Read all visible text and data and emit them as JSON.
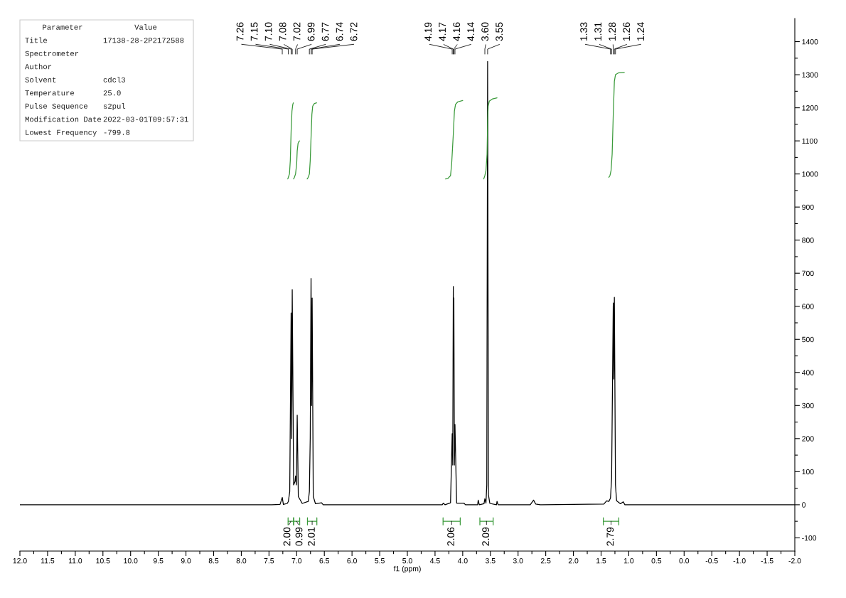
{
  "chart_data": {
    "type": "line",
    "xlabel": "f1 (ppm)",
    "xlim": [
      12.0,
      -2.0
    ],
    "ylim": [
      -140,
      1470
    ],
    "xticks": [
      {
        "value": 12.0,
        "label": "12.0"
      },
      {
        "value": 11.5,
        "label": "11.5"
      },
      {
        "value": 11.0,
        "label": "11.0"
      },
      {
        "value": 10.5,
        "label": "10.5"
      },
      {
        "value": 10.0,
        "label": "10.0"
      },
      {
        "value": 9.5,
        "label": "9.5"
      },
      {
        "value": 9.0,
        "label": "9.0"
      },
      {
        "value": 8.5,
        "label": "8.5"
      },
      {
        "value": 8.0,
        "label": "8.0"
      },
      {
        "value": 7.5,
        "label": "7.5"
      },
      {
        "value": 7.0,
        "label": "7.0"
      },
      {
        "value": 6.5,
        "label": "6.5"
      },
      {
        "value": 6.0,
        "label": "6.0"
      },
      {
        "value": 5.5,
        "label": "5.5"
      },
      {
        "value": 5.0,
        "label": "5.0"
      },
      {
        "value": 4.5,
        "label": "4.5"
      },
      {
        "value": 4.0,
        "label": "4.0"
      },
      {
        "value": 3.5,
        "label": "3.5"
      },
      {
        "value": 3.0,
        "label": "3.0"
      },
      {
        "value": 2.5,
        "label": "2.5"
      },
      {
        "value": 2.0,
        "label": "2.0"
      },
      {
        "value": 1.5,
        "label": "1.5"
      },
      {
        "value": 1.0,
        "label": "1.0"
      },
      {
        "value": 0.5,
        "label": "0.5"
      },
      {
        "value": 0.0,
        "label": "0.0"
      },
      {
        "value": -0.5,
        "label": "-0.5"
      },
      {
        "value": -1.0,
        "label": "-1.0"
      },
      {
        "value": -1.5,
        "label": "-1.5"
      },
      {
        "value": -2.0,
        "label": "-2.0"
      }
    ],
    "yticks": [
      -100,
      0,
      100,
      200,
      300,
      400,
      500,
      600,
      700,
      800,
      900,
      1000,
      1100,
      1200,
      1300,
      1400
    ],
    "series": [
      {
        "color": "#000000",
        "x": [
          12.0,
          7.45,
          7.3,
          7.26,
          7.24,
          7.17,
          7.15,
          7.125,
          7.1,
          7.09,
          7.08,
          7.055,
          7.03,
          7.02,
          7.005,
          6.99,
          6.97,
          6.9,
          6.79,
          6.77,
          6.755,
          6.74,
          6.73,
          6.72,
          6.7,
          6.66,
          6.55,
          6.52,
          4.37,
          4.35,
          4.32,
          4.22,
          4.19,
          4.18,
          4.17,
          4.165,
          4.16,
          4.15,
          4.14,
          4.11,
          3.98,
          3.95,
          3.73,
          3.72,
          3.7,
          3.615,
          3.6,
          3.58,
          3.565,
          3.55,
          3.535,
          3.51,
          3.39,
          3.38,
          3.36,
          2.78,
          2.72,
          2.68,
          2.6,
          1.45,
          1.4,
          1.36,
          1.33,
          1.31,
          1.28,
          1.27,
          1.26,
          1.24,
          1.22,
          1.15,
          1.1,
          1.07,
          -2.0
        ],
        "values": [
          0,
          0,
          1,
          22,
          1,
          4,
          10,
          40,
          580,
          200,
          650,
          60,
          70,
          87,
          60,
          271,
          25,
          4,
          10,
          40,
          200,
          684,
          300,
          625,
          25,
          3,
          6,
          0,
          0,
          5,
          0,
          6,
          215,
          120,
          660,
          450,
          625,
          120,
          243,
          5,
          5,
          0,
          0,
          14,
          0,
          3,
          18,
          5,
          60,
          1340,
          30,
          4,
          0,
          10,
          0,
          0,
          14,
          2,
          0,
          2,
          12,
          10,
          20,
          80,
          610,
          380,
          627,
          60,
          12,
          3,
          9,
          0,
          0
        ]
      },
      {
        "color": "#3a9a3a",
        "x": [
          7.16,
          7.15,
          7.13,
          7.115,
          7.1,
          7.085,
          7.07,
          7.06
        ],
        "values": [
          985,
          990,
          1000,
          1040,
          1130,
          1190,
          1210,
          1215
        ]
      },
      {
        "color": "#3a9a3a",
        "x": [
          7.055,
          7.04,
          7.02,
          7.0,
          6.99,
          6.975,
          6.96,
          6.945
        ],
        "values": [
          985,
          990,
          1000,
          1030,
          1070,
          1092,
          1098,
          1100
        ]
      },
      {
        "color": "#3a9a3a",
        "x": [
          6.81,
          6.79,
          6.77,
          6.755,
          6.74,
          6.725,
          6.71,
          6.68,
          6.64
        ],
        "values": [
          985,
          990,
          1000,
          1040,
          1110,
          1180,
          1205,
          1213,
          1215
        ]
      },
      {
        "color": "#3a9a3a",
        "x": [
          4.31,
          4.27,
          4.22,
          4.2,
          4.17,
          4.15,
          4.13,
          4.09,
          4.0
        ],
        "values": [
          985,
          986,
          995,
          1030,
          1120,
          1190,
          1210,
          1218,
          1222
        ]
      },
      {
        "color": "#3a9a3a",
        "x": [
          3.62,
          3.6,
          3.58,
          3.56,
          3.55,
          3.54,
          3.52,
          3.46,
          3.38
        ],
        "values": [
          985,
          995,
          1010,
          1060,
          1160,
          1205,
          1220,
          1227,
          1230
        ]
      },
      {
        "color": "#3a9a3a",
        "x": [
          1.36,
          1.34,
          1.32,
          1.3,
          1.28,
          1.26,
          1.24,
          1.18,
          1.08
        ],
        "values": [
          990,
          995,
          1010,
          1060,
          1180,
          1280,
          1300,
          1306,
          1307
        ]
      }
    ],
    "annotations": [
      "Parameter\tValue",
      "Title\t17138-28-2P2172588",
      "Spectrometer",
      "Author",
      "Solvent\tcdcl3",
      "Temperature\t25.0",
      "Pulse Sequence\ts2pul",
      "Modification Date\t2022-03-01T09:57:31",
      "Lowest Frequency\t-799.8",
      {
        "text": "7.26",
        "x": 7.26
      },
      {
        "text": "7.15",
        "x": 7.15
      },
      {
        "text": "7.10",
        "x": 7.1
      },
      {
        "text": "7.08",
        "x": 7.08
      },
      {
        "text": "7.02",
        "x": 7.02
      },
      {
        "text": "6.99",
        "x": 6.99
      },
      {
        "text": "6.77",
        "x": 6.77
      },
      {
        "text": "6.74",
        "x": 6.74
      },
      {
        "text": "6.72",
        "x": 6.72
      },
      {
        "text": "4.19",
        "x": 4.19
      },
      {
        "text": "4.17",
        "x": 4.17
      },
      {
        "text": "4.16",
        "x": 4.16
      },
      {
        "text": "4.14",
        "x": 4.14
      },
      {
        "text": "3.60",
        "x": 3.6
      },
      {
        "text": "3.55",
        "x": 3.55
      },
      {
        "text": "1.33",
        "x": 1.33
      },
      {
        "text": "1.31",
        "x": 1.31
      },
      {
        "text": "1.28",
        "x": 1.28
      },
      {
        "text": "1.26",
        "x": 1.26
      },
      {
        "text": "1.24",
        "x": 1.24
      },
      {
        "text": "2.00",
        "x": 7.105,
        "y": -50
      },
      {
        "text": "0.99",
        "x": 7.0,
        "y": -50
      },
      {
        "text": "2.01",
        "x": 6.72,
        "y": -50
      },
      {
        "text": "2.06",
        "x": 4.2,
        "y": -50
      },
      {
        "text": "2.09",
        "x": 3.57,
        "y": -50
      },
      {
        "text": "2.79",
        "x": 1.32,
        "y": -50
      }
    ]
  }
}
